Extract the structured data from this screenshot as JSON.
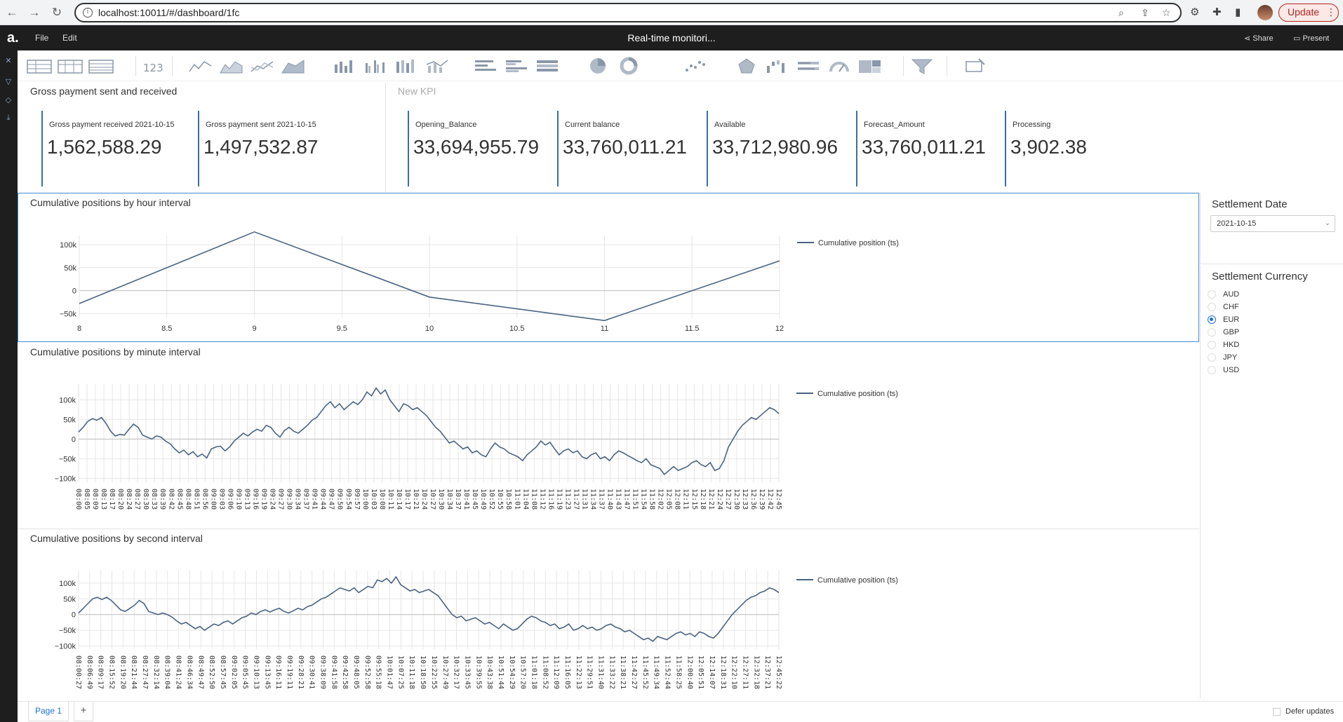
{
  "browser": {
    "url": "localhost:10011/#/dashboard/1fc",
    "update_label": "Update",
    "update_dots": "⋮"
  },
  "app": {
    "logo": "a.",
    "menu": [
      "File",
      "Edit"
    ],
    "title": "Real-time monitori...",
    "share_label": "Share",
    "present_label": "Present"
  },
  "kpi_left": {
    "title": "Gross payment sent and received",
    "items": [
      {
        "label": "Gross payment received 2021-10-15",
        "value": "1,562,588.29"
      },
      {
        "label": "Gross payment sent 2021-10-15",
        "value": "1,497,532.87"
      }
    ]
  },
  "kpi_right": {
    "title": "New KPI",
    "items": [
      {
        "label": "Opening_Balance",
        "value": "33,694,955.79"
      },
      {
        "label": "Current balance",
        "value": "33,760,011.21"
      },
      {
        "label": "Available",
        "value": "33,712,980.96"
      },
      {
        "label": "Forecast_Amount",
        "value": "33,760,011.21"
      },
      {
        "label": "Processing",
        "value": "3,902.38"
      }
    ]
  },
  "filters": {
    "date_title": "Settlement Date",
    "date_value": "2021-10-15",
    "currency_title": "Settlement Currency",
    "currencies": [
      {
        "code": "AUD",
        "checked": false
      },
      {
        "code": "CHF",
        "checked": false
      },
      {
        "code": "EUR",
        "checked": true
      },
      {
        "code": "GBP",
        "checked": false
      },
      {
        "code": "HKD",
        "checked": false
      },
      {
        "code": "JPY",
        "checked": false
      },
      {
        "code": "USD",
        "checked": false
      }
    ]
  },
  "footer": {
    "page_label": "Page 1",
    "add_label": "+",
    "defer_label": "Defer updates"
  },
  "chart_data": [
    {
      "type": "line",
      "title": "Cumulative positions by hour interval",
      "series": [
        {
          "name": "Cumulative position (ts)",
          "color": "#4a6382"
        }
      ],
      "x": [
        8,
        9,
        10,
        11,
        12
      ],
      "values": [
        -28000,
        128000,
        -14000,
        -65000,
        65000
      ],
      "xlim": [
        8,
        12
      ],
      "ylim": [
        -60000,
        120000
      ],
      "yticks": [
        -50000,
        0,
        50000,
        100000
      ],
      "ytick_labels": [
        "−50k",
        "0",
        "50k",
        "100k"
      ],
      "xticks": [
        8,
        8.5,
        9,
        9.5,
        10,
        10.5,
        11,
        11.5,
        12
      ],
      "xtick_labels": [
        "8",
        "8.5",
        "9",
        "9.5",
        "10",
        "10.5",
        "11",
        "11.5",
        "12"
      ],
      "legend": "right",
      "grid": true
    },
    {
      "type": "line",
      "title": "Cumulative positions by minute interval",
      "series": [
        {
          "name": "Cumulative position (ts)",
          "color": "#4a6382"
        }
      ],
      "ylim": [
        -110000,
        140000
      ],
      "yticks": [
        -100000,
        -50000,
        0,
        50000,
        100000
      ],
      "ytick_labels": [
        "−100k",
        "−50k",
        "0",
        "50k",
        "100k"
      ],
      "values": [
        18000,
        30000,
        45000,
        52000,
        48000,
        55000,
        40000,
        20000,
        8000,
        12000,
        10000,
        25000,
        38000,
        30000,
        10000,
        5000,
        0,
        8000,
        5000,
        -5000,
        -12000,
        -25000,
        -35000,
        -28000,
        -40000,
        -32000,
        -45000,
        -38000,
        -48000,
        -25000,
        -20000,
        -18000,
        -30000,
        -20000,
        -5000,
        5000,
        15000,
        8000,
        18000,
        25000,
        20000,
        35000,
        30000,
        15000,
        5000,
        22000,
        30000,
        20000,
        15000,
        25000,
        35000,
        48000,
        55000,
        70000,
        85000,
        95000,
        80000,
        90000,
        75000,
        85000,
        95000,
        88000,
        100000,
        120000,
        110000,
        130000,
        115000,
        125000,
        100000,
        85000,
        70000,
        90000,
        85000,
        75000,
        80000,
        70000,
        60000,
        45000,
        30000,
        20000,
        5000,
        -10000,
        -5000,
        -15000,
        -25000,
        -20000,
        -35000,
        -30000,
        -40000,
        -45000,
        -25000,
        -10000,
        -20000,
        -25000,
        -35000,
        -40000,
        -45000,
        -55000,
        -40000,
        -30000,
        -20000,
        -5000,
        -15000,
        -8000,
        -25000,
        -40000,
        -30000,
        -25000,
        -35000,
        -30000,
        -45000,
        -50000,
        -40000,
        -35000,
        -50000,
        -45000,
        -55000,
        -40000,
        -30000,
        -35000,
        -42000,
        -48000,
        -55000,
        -60000,
        -50000,
        -65000,
        -70000,
        -75000,
        -90000,
        -80000,
        -70000,
        -80000,
        -75000,
        -70000,
        -60000,
        -55000,
        -65000,
        -70000,
        -60000,
        -80000,
        -75000,
        -55000,
        -20000,
        0,
        20000,
        35000,
        45000,
        55000,
        50000,
        60000,
        70000,
        80000,
        75000,
        65000
      ],
      "xtick_labels": [
        "08:00",
        "08:05",
        "08:09",
        "08:13",
        "08:17",
        "08:20",
        "08:24",
        "08:27",
        "08:30",
        "08:33",
        "08:39",
        "08:42",
        "08:45",
        "08:48",
        "08:51",
        "08:56",
        "09:00",
        "09:03",
        "09:06",
        "09:10",
        "09:13",
        "09:16",
        "09:19",
        "09:24",
        "09:27",
        "09:30",
        "09:34",
        "09:37",
        "09:41",
        "09:44",
        "09:47",
        "09:50",
        "09:54",
        "09:57",
        "10:00",
        "10:03",
        "10:08",
        "10:11",
        "10:14",
        "10:17",
        "10:21",
        "10:24",
        "10:27",
        "10:30",
        "10:34",
        "10:37",
        "10:41",
        "10:45",
        "10:49",
        "10:52",
        "10:55",
        "10:58",
        "11:01",
        "11:04",
        "11:08",
        "11:12",
        "11:16",
        "11:19",
        "11:23",
        "11:27",
        "11:31",
        "11:34",
        "11:37",
        "11:40",
        "11:43",
        "11:47",
        "11:51",
        "11:54",
        "11:58",
        "12:02",
        "12:05",
        "12:08",
        "12:11",
        "12:15",
        "12:18",
        "12:21",
        "12:24",
        "12:27",
        "12:30",
        "12:33",
        "12:36",
        "12:39",
        "12:42",
        "12:45"
      ],
      "legend": "right",
      "grid": true
    },
    {
      "type": "line",
      "title": "Cumulative positions by second interval",
      "series": [
        {
          "name": "Cumulative position (ts)",
          "color": "#4a6382"
        }
      ],
      "ylim": [
        -110000,
        140000
      ],
      "yticks": [
        -100000,
        -50000,
        0,
        50000,
        100000
      ],
      "ytick_labels": [
        "−100k",
        "−50k",
        "0",
        "50k",
        "100k"
      ],
      "values": [
        5000,
        20000,
        35000,
        50000,
        55000,
        48000,
        55000,
        45000,
        30000,
        15000,
        10000,
        20000,
        30000,
        45000,
        35000,
        10000,
        5000,
        0,
        5000,
        0,
        -8000,
        -20000,
        -30000,
        -25000,
        -35000,
        -45000,
        -38000,
        -50000,
        -40000,
        -30000,
        -35000,
        -25000,
        -20000,
        -30000,
        -20000,
        -10000,
        -5000,
        5000,
        0,
        10000,
        15000,
        8000,
        15000,
        20000,
        10000,
        5000,
        12000,
        20000,
        15000,
        25000,
        30000,
        40000,
        50000,
        55000,
        65000,
        75000,
        85000,
        80000,
        75000,
        85000,
        70000,
        80000,
        90000,
        85000,
        110000,
        105000,
        115000,
        100000,
        120000,
        95000,
        85000,
        75000,
        80000,
        70000,
        75000,
        80000,
        70000,
        60000,
        40000,
        20000,
        0,
        -10000,
        -5000,
        -20000,
        -15000,
        -10000,
        -20000,
        -30000,
        -25000,
        -35000,
        -45000,
        -30000,
        -40000,
        -50000,
        -45000,
        -30000,
        -15000,
        -5000,
        -10000,
        -20000,
        -25000,
        -35000,
        -30000,
        -45000,
        -40000,
        -30000,
        -50000,
        -45000,
        -35000,
        -45000,
        -40000,
        -50000,
        -45000,
        -35000,
        -30000,
        -40000,
        -45000,
        -55000,
        -50000,
        -60000,
        -70000,
        -80000,
        -75000,
        -85000,
        -70000,
        -75000,
        -80000,
        -70000,
        -60000,
        -55000,
        -65000,
        -60000,
        -70000,
        -55000,
        -60000,
        -70000,
        -75000,
        -60000,
        -40000,
        -20000,
        0,
        15000,
        30000,
        45000,
        55000,
        60000,
        70000,
        75000,
        85000,
        80000,
        70000
      ],
      "xtick_labels": [
        "08:00:27",
        "08:06:49",
        "08:09:17",
        "08:15:52",
        "08:19:20",
        "08:21:44",
        "08:27:47",
        "08:32:14",
        "08:39:04",
        "08:41:24",
        "08:46:34",
        "08:49:47",
        "08:52:50",
        "08:57:45",
        "09:02:05",
        "09:05:45",
        "09:10:13",
        "09:13:45",
        "09:16:11",
        "09:19:11",
        "09:28:21",
        "09:30:41",
        "09:38:09",
        "09:41:58",
        "09:42:58",
        "09:48:05",
        "09:52:58",
        "09:55:18",
        "10:01:47",
        "10:07:25",
        "10:11:18",
        "10:18:50",
        "10:22:55",
        "10:27:49",
        "10:32:17",
        "10:33:45",
        "10:39:55",
        "10:43:38",
        "10:51:44",
        "10:54:29",
        "10:57:20",
        "11:01:18",
        "11:08:52",
        "11:12:09",
        "11:16:05",
        "11:22:13",
        "11:29:51",
        "11:31:40",
        "11:33:22",
        "11:38:21",
        "11:42:27",
        "11:45:52",
        "11:49:34",
        "11:52:44",
        "11:58:25",
        "12:00:40",
        "12:05:51",
        "12:14:07",
        "12:18:31",
        "12:22:10",
        "12:27:11",
        "12:32:18",
        "12:37:21",
        "12:45:22"
      ],
      "legend": "right",
      "grid": true
    }
  ]
}
